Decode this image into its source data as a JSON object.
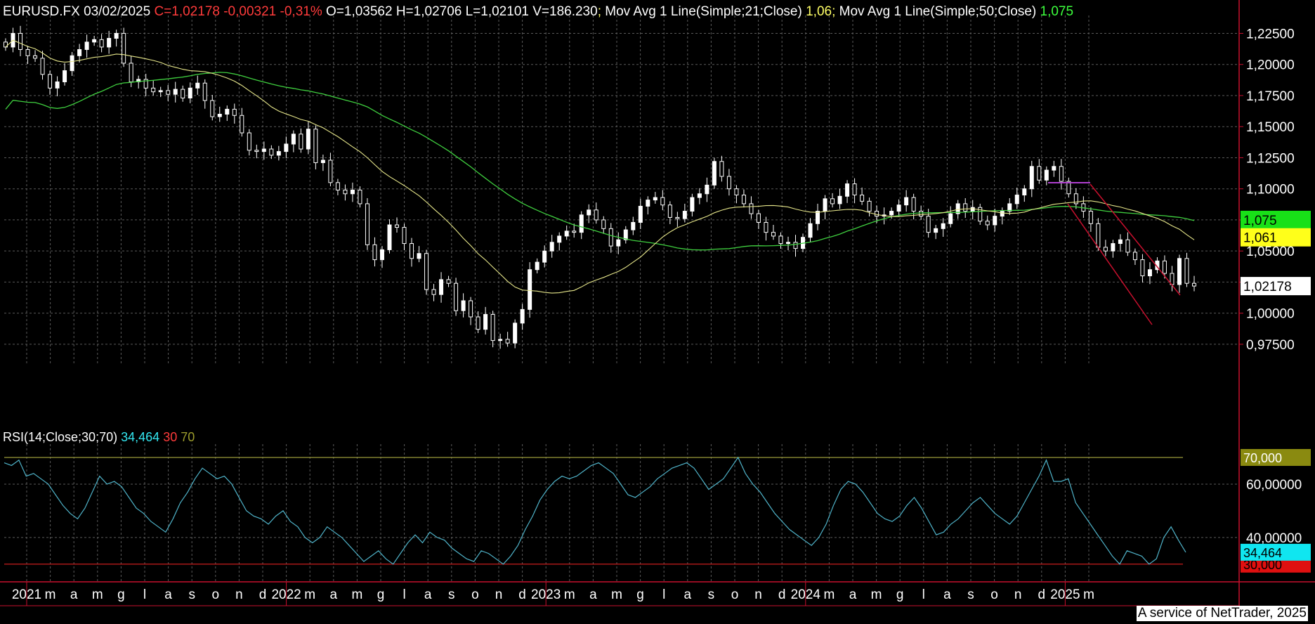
{
  "header": {
    "symbol_date": "EURUSD.FX 03/02/2025",
    "close_change": "C=1,02178 -0,00321 -0,31%",
    "ohlcv": "O=1,03562 H=1,02706 L=1,02101 V=186.230",
    "sep1": ";",
    "ma21_label": "Mov Avg 1 Line(Simple;21;Close)",
    "ma21_value": "1,06",
    "sep2": ";",
    "ma50_label": "Mov Avg 1 Line(Simple;50;Close)",
    "ma50_value": "1,075"
  },
  "rsi_header": {
    "label": "RSI(14;Close;30;70)",
    "value": "34,464",
    "low": "30",
    "high": "70"
  },
  "footer": "A service of NetTrader, 2025",
  "colors": {
    "background": "#000000",
    "grid": "#5a5a5a",
    "axis": "#c8102e",
    "candle_up": "#ffffff",
    "candle_down": "#ffffff",
    "ma21": "#e6e68a",
    "ma50": "#3fcf3f",
    "rsi": "#4fb3c9",
    "rsi70": "#9a9a3a",
    "rsi30": "#e02020",
    "channel": "#c8102e",
    "resistance": "#b040d0"
  },
  "chart_data": [
    {
      "type": "candlestick",
      "title": "EURUSD.FX",
      "x_axis_labels": [
        "2021",
        "m",
        "a",
        "m",
        "g",
        "l",
        "a",
        "s",
        "o",
        "n",
        "d",
        "2022",
        "m",
        "a",
        "m",
        "g",
        "l",
        "a",
        "s",
        "o",
        "n",
        "d",
        "2023",
        "m",
        "a",
        "m",
        "g",
        "l",
        "a",
        "s",
        "o",
        "n",
        "d",
        "2024",
        "m",
        "a",
        "m",
        "g",
        "l",
        "a",
        "s",
        "o",
        "n",
        "d",
        "2025",
        "m"
      ],
      "y_ticks": [
        "1,22500",
        "1,20000",
        "1,17500",
        "1,15000",
        "1,12500",
        "1,10000",
        "1,07500",
        "1,05000",
        "1,02500",
        "1,00000",
        "0,97500"
      ],
      "ylim": [
        0.958,
        1.236
      ],
      "close": [
        1.214,
        1.225,
        1.212,
        1.207,
        1.205,
        1.192,
        1.181,
        1.186,
        1.195,
        1.207,
        1.212,
        1.218,
        1.22,
        1.214,
        1.221,
        1.225,
        1.201,
        1.186,
        1.188,
        1.181,
        1.178,
        1.179,
        1.176,
        1.18,
        1.173,
        1.181,
        1.185,
        1.171,
        1.158,
        1.16,
        1.164,
        1.159,
        1.145,
        1.131,
        1.13,
        1.132,
        1.127,
        1.13,
        1.136,
        1.144,
        1.132,
        1.148,
        1.121,
        1.123,
        1.105,
        1.099,
        1.096,
        1.099,
        1.088,
        1.055,
        1.043,
        1.051,
        1.071,
        1.069,
        1.056,
        1.044,
        1.048,
        1.019,
        1.015,
        1.027,
        1.024,
        1.002,
        1.01,
        0.997,
        0.987,
        0.999,
        0.978,
        0.979,
        0.976,
        0.992,
        1.003,
        1.035,
        1.041,
        1.05,
        1.057,
        1.062,
        1.066,
        1.065,
        1.079,
        1.083,
        1.075,
        1.068,
        1.054,
        1.059,
        1.067,
        1.073,
        1.086,
        1.091,
        1.093,
        1.087,
        1.077,
        1.076,
        1.082,
        1.093,
        1.096,
        1.103,
        1.122,
        1.11,
        1.1,
        1.095,
        1.088,
        1.08,
        1.073,
        1.065,
        1.062,
        1.056,
        1.057,
        1.052,
        1.061,
        1.072,
        1.082,
        1.092,
        1.088,
        1.094,
        1.104,
        1.095,
        1.09,
        1.082,
        1.078,
        1.079,
        1.082,
        1.087,
        1.093,
        1.082,
        1.078,
        1.065,
        1.068,
        1.072,
        1.08,
        1.088,
        1.082,
        1.085,
        1.074,
        1.071,
        1.078,
        1.082,
        1.088,
        1.095,
        1.1,
        1.118,
        1.107,
        1.115,
        1.118,
        1.106,
        1.096,
        1.088,
        1.082,
        1.072,
        1.053,
        1.05,
        1.056,
        1.059,
        1.049,
        1.043,
        1.03,
        1.035,
        1.042,
        1.032,
        1.023,
        1.044,
        1.024,
        1.0218
      ],
      "series": [
        {
          "name": "Mov Avg 1 Line(Simple;21;Close)",
          "last": 1.061
        },
        {
          "name": "Mov Avg 1 Line(Simple;50;Close)",
          "last": 1.075
        }
      ],
      "last_price_label": "1,02178",
      "ma50_label": "1,075",
      "ma21_label": "1,061"
    },
    {
      "type": "line",
      "title": "RSI(14;Close;30;70)",
      "y_ticks": [
        "60,00000",
        "40,00000"
      ],
      "ylim": [
        26,
        75
      ],
      "levels": [
        70,
        30
      ],
      "level_labels": [
        "70,000",
        "30,000"
      ],
      "last_value_label": "34,464",
      "series": [
        {
          "name": "RSI(14;Close;30;70)",
          "values": [
            68,
            67,
            69,
            63,
            64,
            62,
            60,
            56,
            52,
            49,
            47,
            51,
            57,
            63,
            60,
            61,
            59,
            55,
            51,
            49,
            46,
            44,
            42,
            47,
            53,
            57,
            62,
            66,
            64,
            62,
            63,
            60,
            55,
            50,
            48,
            47,
            45,
            48,
            50,
            46,
            44,
            40,
            38,
            40,
            44,
            42,
            40,
            37,
            34,
            31,
            33,
            35,
            32,
            30,
            34,
            38,
            41,
            38,
            42,
            40,
            39,
            36,
            34,
            32,
            31,
            35,
            34,
            32,
            30,
            33,
            37,
            43,
            48,
            54,
            58,
            61,
            63,
            62,
            63,
            65,
            67,
            68,
            66,
            64,
            60,
            56,
            55,
            57,
            59,
            62,
            64,
            66,
            67,
            68,
            66,
            62,
            58,
            60,
            62,
            66,
            70,
            64,
            60,
            57,
            53,
            49,
            46,
            43,
            41,
            39,
            37,
            40,
            45,
            52,
            58,
            61,
            60,
            57,
            53,
            49,
            47,
            46,
            48,
            52,
            55,
            51,
            46,
            41,
            42,
            45,
            47,
            50,
            53,
            55,
            52,
            49,
            47,
            45,
            48,
            53,
            58,
            63,
            69,
            61,
            61,
            62,
            53,
            49,
            45,
            41,
            37,
            33,
            30,
            35,
            34,
            33,
            30,
            32,
            40,
            44,
            39,
            34.464
          ]
        }
      ]
    }
  ]
}
